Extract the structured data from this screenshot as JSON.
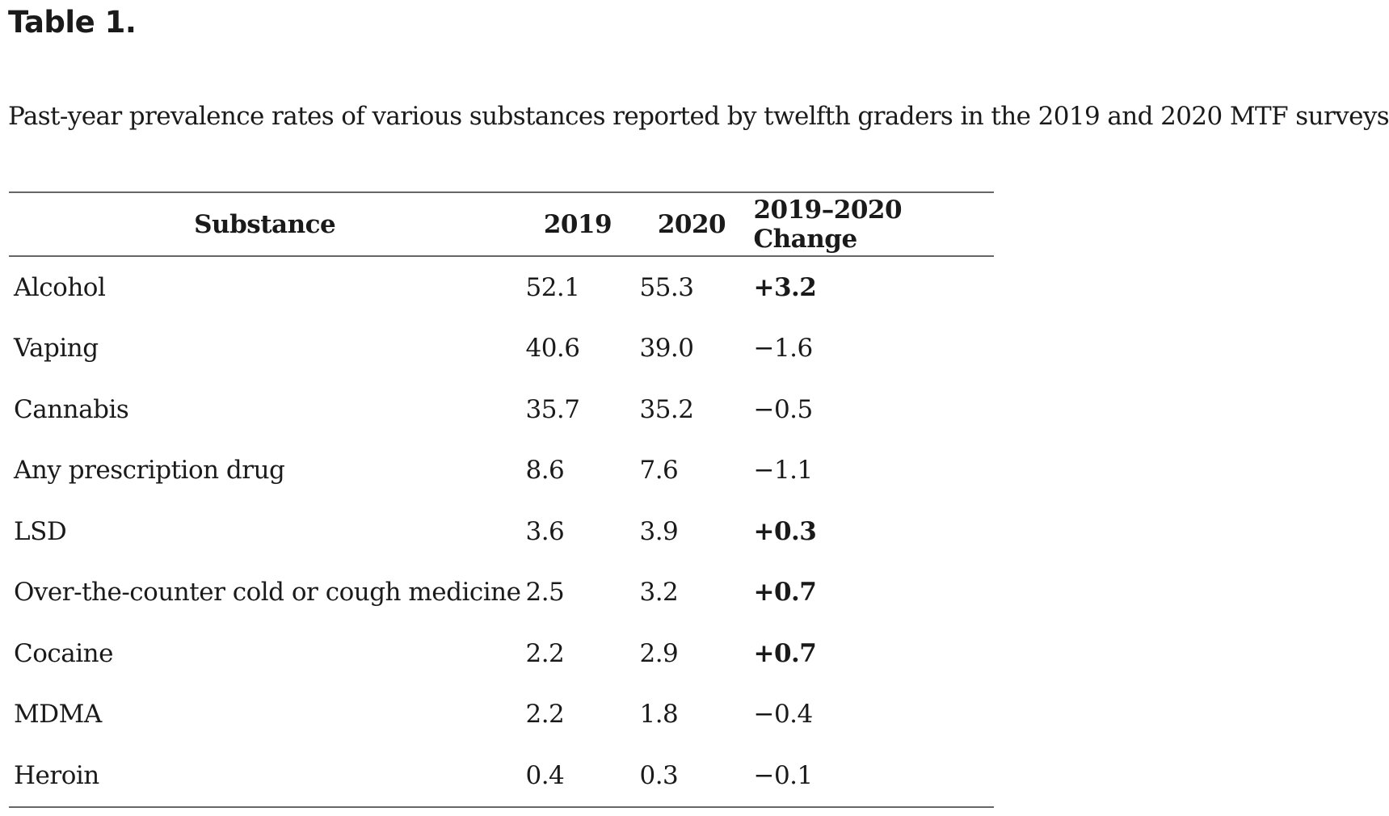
{
  "header": {
    "title": "Table 1.",
    "caption": "Past-year prevalence rates of various substances reported by twelfth graders in the 2019 and 2020 MTF surveys"
  },
  "table": {
    "columns": [
      "Substance",
      "2019",
      "2020",
      "2019–2020 Change"
    ],
    "rows": [
      [
        "Alcohol",
        "52.1",
        "55.3",
        "+3.2"
      ],
      [
        "Vaping",
        "40.6",
        "39.0",
        "−1.6"
      ],
      [
        "Cannabis",
        "35.7",
        "35.2",
        "−0.5"
      ],
      [
        "Any prescription drug",
        "8.6",
        "7.6",
        "−1.1"
      ],
      [
        "LSD",
        "3.6",
        "3.9",
        "+0.3"
      ],
      [
        "Over-the-counter cold or cough medicine",
        "2.5",
        "3.2",
        "+0.7"
      ],
      [
        "Cocaine",
        "2.2",
        "2.9",
        "+0.7"
      ],
      [
        "MDMA",
        "2.2",
        "1.8",
        "−0.4"
      ],
      [
        "Heroin",
        "0.4",
        "0.3",
        "−0.1"
      ]
    ]
  }
}
